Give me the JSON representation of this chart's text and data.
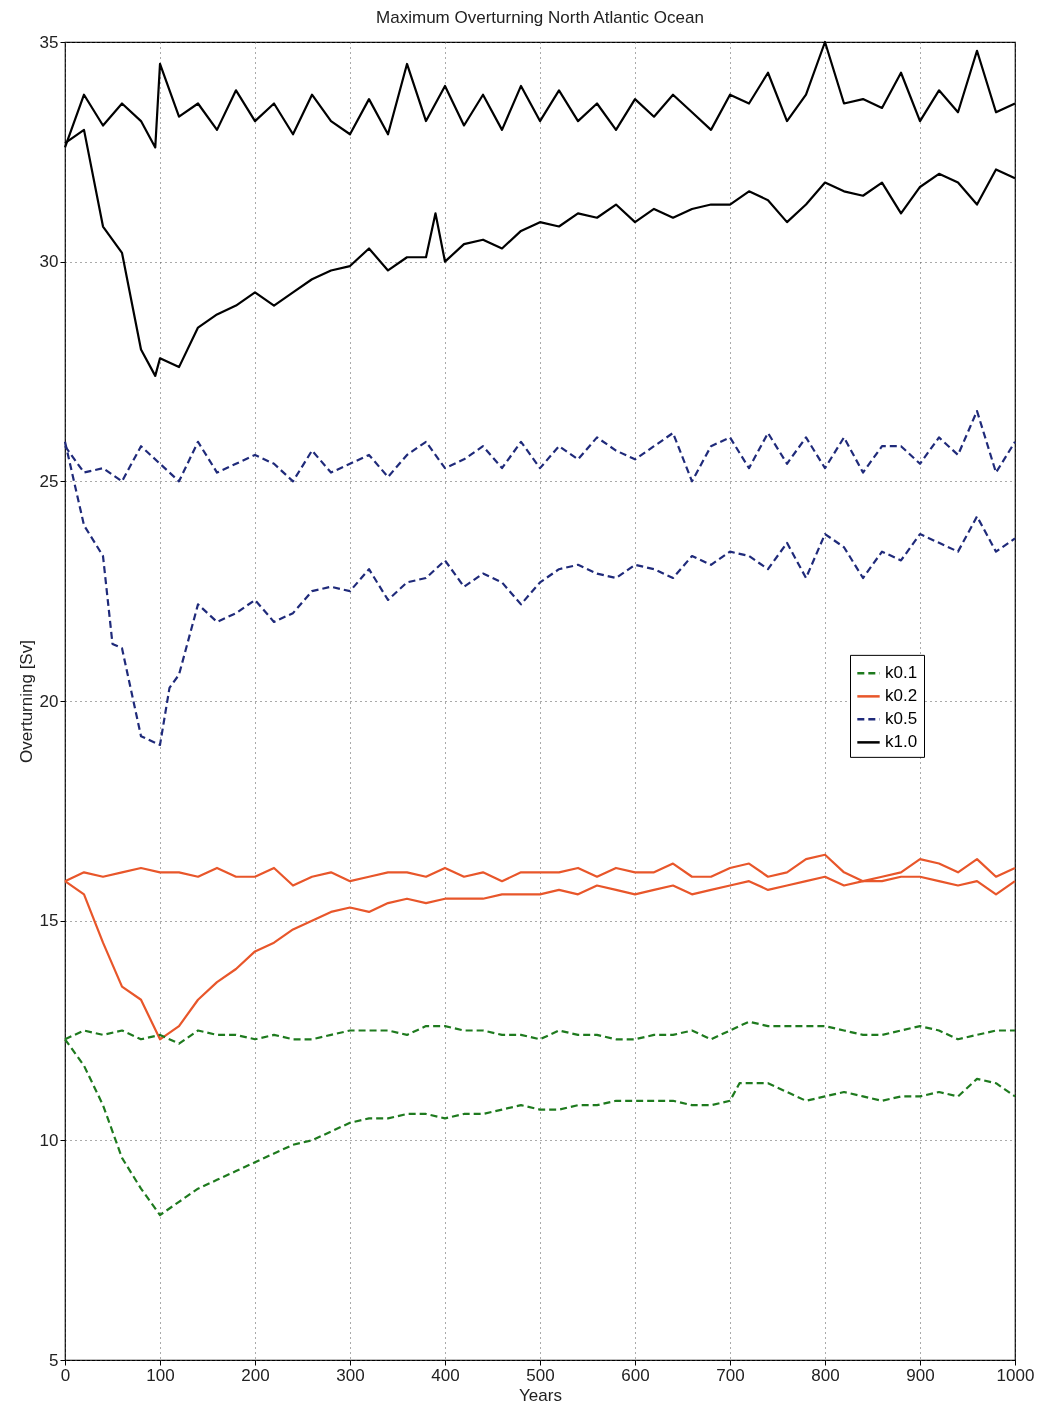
{
  "chart_data": {
    "type": "line",
    "title": "Maximum Overturning North Atlantic Ocean",
    "xlabel": "Years",
    "ylabel": "Overturning [Sv]",
    "xlim": [
      0,
      1000
    ],
    "xticks": [
      0,
      100,
      200,
      300,
      400,
      500,
      600,
      700,
      800,
      900,
      1000
    ],
    "ylim": [
      5,
      35
    ],
    "yticks": [
      5,
      10,
      15,
      20,
      25,
      30,
      35
    ],
    "grid": true,
    "legend": "right",
    "marker": "none",
    "series": [
      {
        "name": "k0.1",
        "color": "#1e7a1e",
        "line_style": "dashed",
        "x": [
          0,
          20,
          40,
          60,
          80,
          100,
          120,
          140,
          160,
          180,
          200,
          220,
          240,
          260,
          280,
          300,
          320,
          340,
          360,
          380,
          400,
          420,
          440,
          460,
          480,
          500,
          520,
          540,
          560,
          580,
          600,
          620,
          640,
          660,
          680,
          700,
          710,
          720,
          740,
          760,
          780,
          800,
          820,
          840,
          860,
          880,
          900,
          920,
          940,
          960,
          980,
          1000
        ],
        "values": [
          12.3,
          11.7,
          10.8,
          9.6,
          8.9,
          8.3,
          8.6,
          8.9,
          9.1,
          9.3,
          9.5,
          9.7,
          9.9,
          10.0,
          10.2,
          10.4,
          10.5,
          10.5,
          10.6,
          10.6,
          10.5,
          10.6,
          10.6,
          10.7,
          10.8,
          10.7,
          10.7,
          10.8,
          10.8,
          10.9,
          10.9,
          10.9,
          10.9,
          10.8,
          10.8,
          10.9,
          11.3,
          11.3,
          11.3,
          11.1,
          10.9,
          11.0,
          11.1,
          11.0,
          10.9,
          11.0,
          11.0,
          11.1,
          11.0,
          11.4,
          11.3,
          11.0
        ]
      },
      {
        "name": "k0.2",
        "color": "#e8562a",
        "line_style": "solid",
        "x": [
          0,
          20,
          40,
          60,
          80,
          100,
          120,
          140,
          160,
          180,
          200,
          220,
          240,
          260,
          280,
          300,
          320,
          340,
          360,
          380,
          400,
          420,
          440,
          460,
          480,
          500,
          520,
          540,
          560,
          580,
          600,
          620,
          640,
          660,
          680,
          700,
          720,
          740,
          760,
          780,
          800,
          820,
          840,
          860,
          880,
          900,
          920,
          940,
          960,
          980,
          1000
        ],
        "values": [
          15.9,
          15.6,
          14.5,
          13.5,
          13.2,
          12.3,
          12.6,
          13.2,
          13.6,
          13.9,
          14.3,
          14.5,
          14.8,
          15.0,
          15.2,
          15.3,
          15.2,
          15.4,
          15.5,
          15.4,
          15.5,
          15.5,
          15.5,
          15.6,
          15.6,
          15.6,
          15.7,
          15.6,
          15.8,
          15.7,
          15.6,
          15.7,
          15.8,
          15.6,
          15.7,
          15.8,
          15.9,
          15.7,
          15.8,
          15.9,
          16.0,
          15.8,
          15.9,
          15.9,
          16.0,
          16.0,
          15.9,
          15.8,
          15.9,
          15.6,
          15.9
        ]
      },
      {
        "name": "k0.5",
        "color": "#1f2a7a",
        "line_style": "dashed",
        "x": [
          0,
          20,
          40,
          50,
          60,
          80,
          100,
          110,
          120,
          140,
          160,
          180,
          200,
          220,
          240,
          260,
          280,
          300,
          320,
          340,
          360,
          380,
          400,
          420,
          440,
          460,
          480,
          500,
          520,
          540,
          560,
          580,
          600,
          620,
          640,
          660,
          680,
          700,
          720,
          740,
          760,
          780,
          800,
          820,
          840,
          860,
          880,
          900,
          920,
          940,
          960,
          980,
          1000
        ],
        "values": [
          25.9,
          24.0,
          23.3,
          21.3,
          21.2,
          19.2,
          19.0,
          20.3,
          20.6,
          22.2,
          21.8,
          22.0,
          22.3,
          21.8,
          22.0,
          22.5,
          22.6,
          22.5,
          23.0,
          22.3,
          22.7,
          22.8,
          23.2,
          22.6,
          22.9,
          22.7,
          22.2,
          22.7,
          23.0,
          23.1,
          22.9,
          22.8,
          23.1,
          23.0,
          22.8,
          23.3,
          23.1,
          23.4,
          23.3,
          23.0,
          23.6,
          22.8,
          23.8,
          23.5,
          22.8,
          23.4,
          23.2,
          23.8,
          23.6,
          23.4,
          24.2,
          23.4,
          23.7
        ]
      },
      {
        "name": "k1.0",
        "color": "#000000",
        "line_style": "solid",
        "x": [
          0,
          20,
          40,
          60,
          80,
          95,
          100,
          120,
          140,
          160,
          180,
          200,
          220,
          240,
          260,
          280,
          300,
          320,
          340,
          360,
          380,
          390,
          400,
          420,
          440,
          460,
          480,
          500,
          520,
          540,
          560,
          580,
          600,
          620,
          640,
          660,
          680,
          700,
          720,
          740,
          760,
          780,
          800,
          820,
          840,
          860,
          880,
          900,
          920,
          940,
          960,
          980,
          1000
        ],
        "values": [
          32.7,
          33.0,
          30.8,
          30.2,
          28.0,
          27.4,
          27.8,
          27.6,
          28.5,
          28.8,
          29.0,
          29.3,
          29.0,
          29.3,
          29.6,
          29.8,
          29.9,
          30.3,
          29.8,
          30.1,
          30.1,
          31.1,
          30.0,
          30.4,
          30.5,
          30.3,
          30.7,
          30.9,
          30.8,
          31.1,
          31.0,
          31.3,
          30.9,
          31.2,
          31.0,
          31.2,
          31.3,
          31.3,
          31.6,
          31.4,
          30.9,
          31.3,
          31.8,
          31.6,
          31.5,
          31.8,
          31.1,
          31.7,
          32.0,
          31.8,
          31.3,
          32.1,
          31.9
        ]
      },
      {
        "color": "#1e7a1e",
        "line_style": "dashed",
        "x": [
          0,
          20,
          40,
          60,
          80,
          100,
          120,
          140,
          160,
          180,
          200,
          220,
          240,
          260,
          280,
          300,
          320,
          340,
          360,
          380,
          400,
          420,
          440,
          460,
          480,
          500,
          520,
          540,
          560,
          580,
          600,
          620,
          640,
          660,
          680,
          700,
          720,
          740,
          760,
          780,
          800,
          820,
          840,
          860,
          880,
          900,
          920,
          940,
          960,
          980,
          1000
        ],
        "values": [
          12.3,
          12.5,
          12.4,
          12.5,
          12.3,
          12.4,
          12.2,
          12.5,
          12.4,
          12.4,
          12.3,
          12.4,
          12.3,
          12.3,
          12.4,
          12.5,
          12.5,
          12.5,
          12.4,
          12.6,
          12.6,
          12.5,
          12.5,
          12.4,
          12.4,
          12.3,
          12.5,
          12.4,
          12.4,
          12.3,
          12.3,
          12.4,
          12.4,
          12.5,
          12.3,
          12.5,
          12.7,
          12.6,
          12.6,
          12.6,
          12.6,
          12.5,
          12.4,
          12.4,
          12.5,
          12.6,
          12.5,
          12.3,
          12.4,
          12.5,
          12.5
        ]
      },
      {
        "color": "#e8562a",
        "line_style": "solid",
        "x": [
          0,
          20,
          40,
          60,
          80,
          100,
          120,
          140,
          160,
          180,
          200,
          220,
          240,
          260,
          280,
          300,
          320,
          340,
          360,
          380,
          400,
          420,
          440,
          460,
          480,
          500,
          520,
          540,
          560,
          580,
          600,
          620,
          640,
          660,
          680,
          700,
          720,
          740,
          760,
          780,
          800,
          820,
          840,
          860,
          880,
          900,
          920,
          940,
          960,
          980,
          1000
        ],
        "values": [
          15.9,
          16.1,
          16.0,
          16.1,
          16.2,
          16.1,
          16.1,
          16.0,
          16.2,
          16.0,
          16.0,
          16.2,
          15.8,
          16.0,
          16.1,
          15.9,
          16.0,
          16.1,
          16.1,
          16.0,
          16.2,
          16.0,
          16.1,
          15.9,
          16.1,
          16.1,
          16.1,
          16.2,
          16.0,
          16.2,
          16.1,
          16.1,
          16.3,
          16.0,
          16.0,
          16.2,
          16.3,
          16.0,
          16.1,
          16.4,
          16.5,
          16.1,
          15.9,
          16.0,
          16.1,
          16.4,
          16.3,
          16.1,
          16.4,
          16.0,
          16.2
        ]
      },
      {
        "color": "#1f2a7a",
        "line_style": "dashed",
        "x": [
          0,
          20,
          40,
          60,
          80,
          100,
          120,
          140,
          160,
          180,
          200,
          220,
          240,
          260,
          280,
          300,
          320,
          340,
          360,
          380,
          400,
          420,
          440,
          460,
          480,
          500,
          520,
          540,
          560,
          580,
          600,
          620,
          640,
          660,
          680,
          700,
          720,
          740,
          760,
          780,
          800,
          820,
          840,
          860,
          880,
          900,
          920,
          940,
          960,
          980,
          1000
        ],
        "values": [
          25.8,
          25.2,
          25.3,
          25.0,
          25.8,
          25.4,
          25.0,
          25.9,
          25.2,
          25.4,
          25.6,
          25.4,
          25.0,
          25.7,
          25.2,
          25.4,
          25.6,
          25.1,
          25.6,
          25.9,
          25.3,
          25.5,
          25.8,
          25.3,
          25.9,
          25.3,
          25.8,
          25.5,
          26.0,
          25.7,
          25.5,
          25.8,
          26.1,
          25.0,
          25.8,
          26.0,
          25.3,
          26.1,
          25.4,
          26.0,
          25.3,
          26.0,
          25.2,
          25.8,
          25.8,
          25.4,
          26.0,
          25.6,
          26.6,
          25.2,
          25.9
        ]
      },
      {
        "color": "#000000",
        "line_style": "solid",
        "x": [
          0,
          20,
          40,
          60,
          80,
          95,
          100,
          120,
          140,
          160,
          180,
          200,
          220,
          240,
          260,
          280,
          300,
          320,
          340,
          360,
          380,
          400,
          420,
          440,
          460,
          480,
          500,
          520,
          540,
          560,
          580,
          600,
          620,
          640,
          660,
          680,
          700,
          720,
          740,
          760,
          780,
          800,
          820,
          840,
          860,
          880,
          900,
          920,
          940,
          960,
          980,
          1000
        ],
        "values": [
          32.6,
          33.8,
          33.1,
          33.6,
          33.2,
          32.6,
          34.5,
          33.3,
          33.6,
          33.0,
          33.9,
          33.2,
          33.6,
          32.9,
          33.8,
          33.2,
          32.9,
          33.7,
          32.9,
          34.5,
          33.2,
          34.0,
          33.1,
          33.8,
          33.0,
          34.0,
          33.2,
          33.9,
          33.2,
          33.6,
          33.0,
          33.7,
          33.3,
          33.8,
          33.4,
          33.0,
          33.8,
          33.6,
          34.3,
          33.2,
          33.8,
          35.0,
          33.6,
          33.7,
          33.5,
          34.3,
          33.2,
          33.9,
          33.4,
          34.8,
          33.4,
          33.6
        ]
      }
    ]
  }
}
